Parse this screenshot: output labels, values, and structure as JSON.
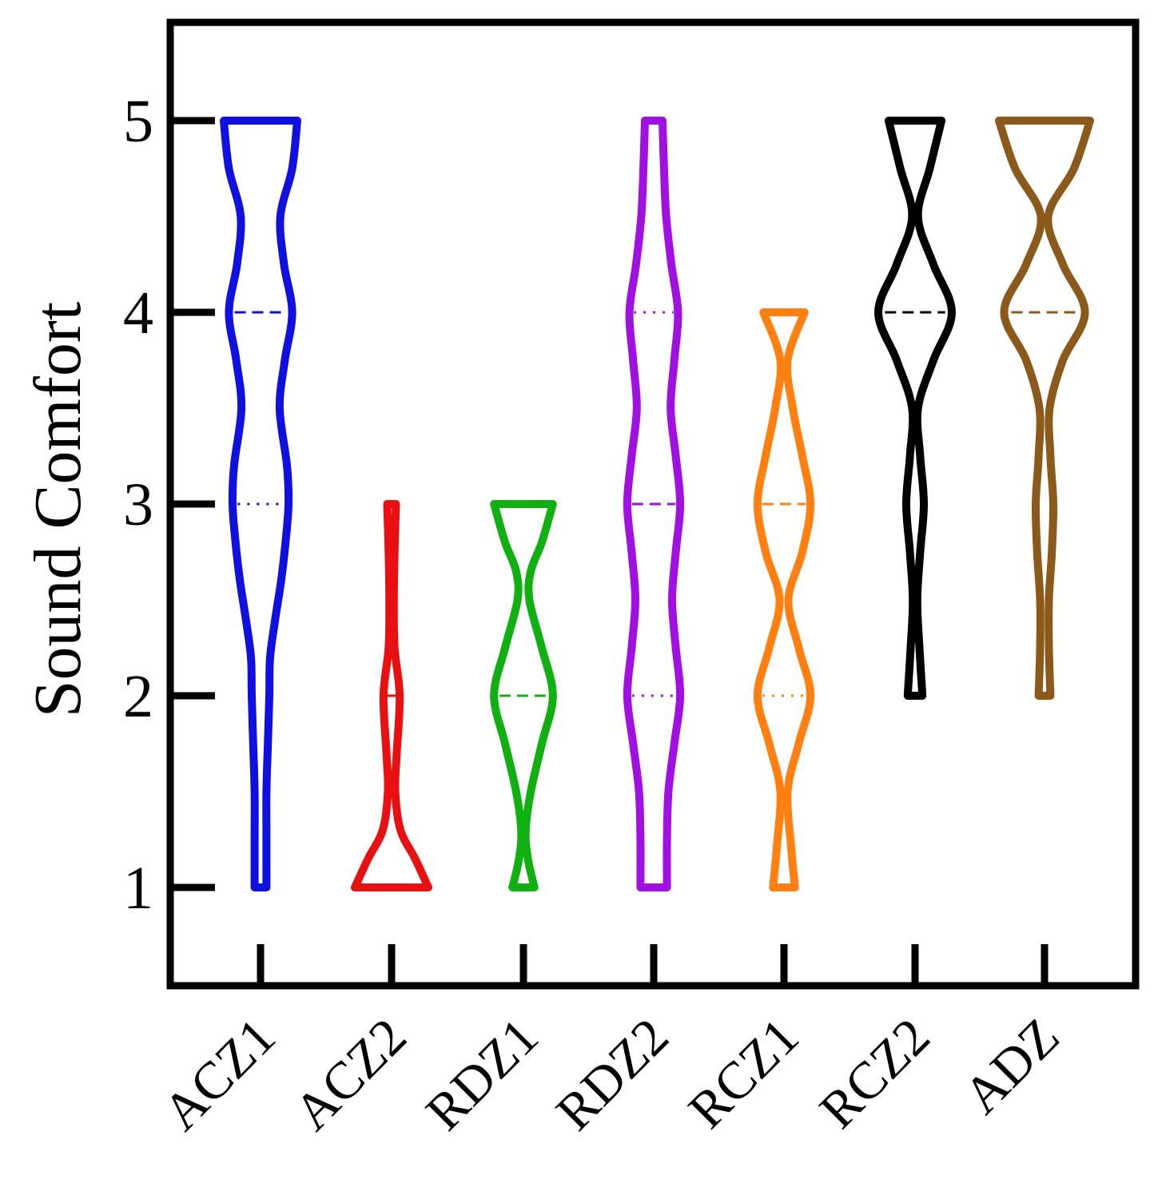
{
  "chart_data": {
    "type": "violin",
    "title": "",
    "xlabel": "",
    "ylabel": "Sound Comfort",
    "ylim": [
      0.5,
      5.5
    ],
    "yticks": [
      1,
      2,
      3,
      4,
      5
    ],
    "categories": [
      "ACZ1",
      "ACZ2",
      "RDZ1",
      "RDZ2",
      "RCZ1",
      "RCZ2",
      "ADZ"
    ],
    "colors": [
      "#1010e0",
      "#e81010",
      "#10b010",
      "#a010e0",
      "#ff8010",
      "#000000",
      "#8b5a1a"
    ],
    "violins": [
      {
        "name": "ACZ1",
        "range": [
          1,
          5
        ],
        "median": 4,
        "quartiles": [
          3,
          5
        ],
        "profile": [
          [
            1.0,
            0.08
          ],
          [
            1.25,
            0.08
          ],
          [
            1.5,
            0.08
          ],
          [
            1.75,
            0.1
          ],
          [
            2.0,
            0.12
          ],
          [
            2.2,
            0.13
          ],
          [
            2.4,
            0.2
          ],
          [
            2.6,
            0.28
          ],
          [
            2.8,
            0.34
          ],
          [
            3.0,
            0.38
          ],
          [
            3.2,
            0.36
          ],
          [
            3.5,
            0.26
          ],
          [
            3.75,
            0.33
          ],
          [
            4.0,
            0.43
          ],
          [
            4.25,
            0.32
          ],
          [
            4.5,
            0.27
          ],
          [
            4.75,
            0.43
          ],
          [
            5.0,
            0.5
          ]
        ]
      },
      {
        "name": "ACZ2",
        "range": [
          1,
          3
        ],
        "median": 2,
        "quartiles": [
          1,
          2
        ],
        "profile": [
          [
            1.0,
            0.5
          ],
          [
            1.15,
            0.32
          ],
          [
            1.3,
            0.12
          ],
          [
            1.5,
            0.05
          ],
          [
            1.7,
            0.07
          ],
          [
            2.0,
            0.11
          ],
          [
            2.25,
            0.04
          ],
          [
            2.5,
            0.03
          ],
          [
            2.75,
            0.04
          ],
          [
            3.0,
            0.06
          ]
        ]
      },
      {
        "name": "RDZ1",
        "range": [
          1,
          3
        ],
        "median": 2,
        "quartiles": [
          2,
          3
        ],
        "profile": [
          [
            1.0,
            0.15
          ],
          [
            1.15,
            0.06
          ],
          [
            1.3,
            0.03
          ],
          [
            1.5,
            0.1
          ],
          [
            1.75,
            0.25
          ],
          [
            2.0,
            0.4
          ],
          [
            2.25,
            0.25
          ],
          [
            2.5,
            0.08
          ],
          [
            2.65,
            0.1
          ],
          [
            2.8,
            0.25
          ],
          [
            3.0,
            0.4
          ]
        ]
      },
      {
        "name": "RDZ2",
        "range": [
          1,
          5
        ],
        "median": 3,
        "quartiles": [
          2,
          4
        ],
        "profile": [
          [
            1.0,
            0.18
          ],
          [
            1.25,
            0.18
          ],
          [
            1.5,
            0.2
          ],
          [
            1.75,
            0.28
          ],
          [
            2.0,
            0.36
          ],
          [
            2.25,
            0.3
          ],
          [
            2.5,
            0.25
          ],
          [
            2.75,
            0.3
          ],
          [
            3.0,
            0.36
          ],
          [
            3.25,
            0.3
          ],
          [
            3.5,
            0.23
          ],
          [
            3.75,
            0.28
          ],
          [
            4.0,
            0.33
          ],
          [
            4.25,
            0.24
          ],
          [
            4.5,
            0.17
          ],
          [
            4.75,
            0.14
          ],
          [
            5.0,
            0.12
          ]
        ]
      },
      {
        "name": "RCZ1",
        "range": [
          1,
          4
        ],
        "median": 3,
        "quartiles": [
          2,
          3
        ],
        "profile": [
          [
            1.0,
            0.15
          ],
          [
            1.2,
            0.1
          ],
          [
            1.5,
            0.05
          ],
          [
            1.75,
            0.2
          ],
          [
            2.0,
            0.36
          ],
          [
            2.25,
            0.2
          ],
          [
            2.5,
            0.06
          ],
          [
            2.75,
            0.25
          ],
          [
            3.0,
            0.36
          ],
          [
            3.25,
            0.25
          ],
          [
            3.5,
            0.12
          ],
          [
            3.75,
            0.05
          ],
          [
            4.0,
            0.28
          ]
        ]
      },
      {
        "name": "RCZ2",
        "range": [
          2,
          5
        ],
        "median": 4,
        "quartiles": [
          4,
          5
        ],
        "profile": [
          [
            2.0,
            0.1
          ],
          [
            2.25,
            0.06
          ],
          [
            2.5,
            0.03
          ],
          [
            2.75,
            0.07
          ],
          [
            3.0,
            0.12
          ],
          [
            3.25,
            0.07
          ],
          [
            3.5,
            0.04
          ],
          [
            3.75,
            0.25
          ],
          [
            4.0,
            0.5
          ],
          [
            4.25,
            0.25
          ],
          [
            4.5,
            0.04
          ],
          [
            4.75,
            0.2
          ],
          [
            5.0,
            0.36
          ]
        ]
      },
      {
        "name": "ADZ",
        "range": [
          2,
          5
        ],
        "median": 4,
        "quartiles": [
          4,
          4
        ],
        "profile": [
          [
            2.0,
            0.08
          ],
          [
            2.25,
            0.06
          ],
          [
            2.5,
            0.06
          ],
          [
            2.75,
            0.1
          ],
          [
            3.0,
            0.12
          ],
          [
            3.25,
            0.08
          ],
          [
            3.5,
            0.07
          ],
          [
            3.75,
            0.25
          ],
          [
            4.0,
            0.55
          ],
          [
            4.25,
            0.25
          ],
          [
            4.5,
            0.05
          ],
          [
            4.75,
            0.4
          ],
          [
            5.0,
            0.62
          ]
        ]
      }
    ]
  }
}
